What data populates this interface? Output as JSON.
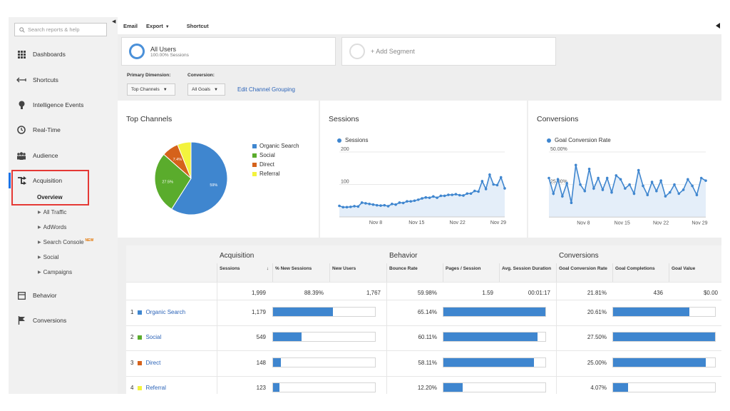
{
  "sidebar": {
    "search_placeholder": "Search reports & help",
    "items": [
      {
        "label": "Dashboards",
        "icon": "grid-icon"
      },
      {
        "label": "Shortcuts",
        "icon": "shortcut-arrow-icon"
      },
      {
        "label": "Intelligence Events",
        "icon": "lightbulb-icon"
      },
      {
        "label": "Real-Time",
        "icon": "clock-icon"
      },
      {
        "label": "Audience",
        "icon": "people-icon"
      },
      {
        "label": "Acquisition",
        "icon": "acquisition-icon"
      },
      {
        "label": "Behavior",
        "icon": "behavior-icon"
      },
      {
        "label": "Conversions",
        "icon": "flag-icon"
      }
    ],
    "acquisition_overview": "Overview",
    "acquisition_subitems": [
      "All Traffic",
      "AdWords",
      "Search Console",
      "Social",
      "Campaigns"
    ],
    "new_badge": "NEW"
  },
  "toolbar": {
    "email": "Email",
    "export": "Export",
    "shortcut": "Shortcut"
  },
  "segments": {
    "all_users": "All Users",
    "all_users_sub": "100.00% Sessions",
    "add_segment": "+ Add Segment"
  },
  "dimensions": {
    "primary_label": "Primary Dimension:",
    "primary_value": "Top Channels",
    "conversion_label": "Conversion:",
    "conversion_value": "All Goals",
    "edit_link": "Edit Channel Grouping"
  },
  "panels": {
    "top_channels_title": "Top Channels",
    "sessions_title": "Sessions",
    "sessions_legend": "Sessions",
    "conversions_title": "Conversions",
    "conversions_legend": "Goal Conversion Rate"
  },
  "colors": {
    "blue": "#3f86cf",
    "green": "#5aac2c",
    "orange": "#d5621b",
    "yellow": "#f3f33d"
  },
  "pie": {
    "slices": [
      {
        "label": "Organic Search",
        "value": 59,
        "color": "#3f86cf",
        "label_text": "59%"
      },
      {
        "label": "Social",
        "value": 27.5,
        "color": "#5aac2c",
        "label_text": "27.5%"
      },
      {
        "label": "Direct",
        "value": 7.4,
        "color": "#d5621b",
        "label_text": "7.4%"
      },
      {
        "label": "Referral",
        "value": 6.1,
        "color": "#f3f33d",
        "label_text": ""
      }
    ]
  },
  "chart_data": [
    {
      "type": "line",
      "title": "Sessions",
      "series": [
        {
          "name": "Sessions",
          "values": [
            34,
            30,
            30,
            31,
            33,
            32,
            44,
            42,
            40,
            38,
            36,
            35,
            36,
            33,
            40,
            38,
            44,
            43,
            48,
            48,
            50,
            53,
            57,
            60,
            59,
            63,
            59,
            65,
            65,
            68,
            68,
            70,
            67,
            66,
            72,
            72,
            80,
            78,
            110,
            86,
            130,
            100,
            98,
            122,
            88
          ]
        }
      ],
      "yticks": [
        "100",
        "200"
      ],
      "ylim": [
        0,
        200
      ],
      "xticks": [
        "Nov 8",
        "Nov 15",
        "Nov 22",
        "Nov 29"
      ]
    },
    {
      "type": "line",
      "title": "Conversions",
      "series": [
        {
          "name": "Goal Conversion Rate",
          "values": [
            30,
            18,
            29,
            16,
            26,
            11,
            40,
            25,
            20,
            37,
            22,
            30,
            21,
            30,
            19,
            32,
            29,
            22,
            25,
            18,
            36,
            24,
            17,
            27,
            20,
            28,
            16,
            19,
            25,
            18,
            21,
            29,
            24,
            17,
            30,
            28
          ]
        }
      ],
      "yticks": [
        "25.00%",
        "50.00%"
      ],
      "ylim": [
        0,
        50
      ],
      "xticks": [
        "Nov 8",
        "Nov 15",
        "Nov 22",
        "Nov 29"
      ]
    }
  ],
  "table": {
    "groups": [
      "Acquisition",
      "Behavior",
      "Conversions"
    ],
    "headers": [
      "Sessions",
      "% New Sessions",
      "New Users",
      "Bounce Rate",
      "Pages / Session",
      "Avg. Session Duration",
      "Goal Conversion Rate",
      "Goal Completions",
      "Goal Value"
    ],
    "sort_indicator": "↓",
    "totals": [
      "1,999",
      "88.39%",
      "1,767",
      "59.98%",
      "1.59",
      "00:01:17",
      "21.81%",
      "436",
      "$0.00"
    ],
    "rows": [
      {
        "rank": "1",
        "name": "Organic Search",
        "color": "#3f86cf",
        "sessions": "1,179",
        "bounce": "65.14%",
        "conv": "20.61%",
        "new_bar": 0.59,
        "bounce_bar": 1.0,
        "conv_bar": 0.75
      },
      {
        "rank": "2",
        "name": "Social",
        "color": "#5aac2c",
        "sessions": "549",
        "bounce": "60.11%",
        "conv": "27.50%",
        "new_bar": 0.28,
        "bounce_bar": 0.92,
        "conv_bar": 1.0
      },
      {
        "rank": "3",
        "name": "Direct",
        "color": "#d5621b",
        "sessions": "148",
        "bounce": "58.11%",
        "conv": "25.00%",
        "new_bar": 0.08,
        "bounce_bar": 0.89,
        "conv_bar": 0.91
      },
      {
        "rank": "4",
        "name": "Referral",
        "color": "#f3f33d",
        "sessions": "123",
        "bounce": "12.20%",
        "conv": "4.07%",
        "new_bar": 0.06,
        "bounce_bar": 0.19,
        "conv_bar": 0.15
      }
    ]
  }
}
